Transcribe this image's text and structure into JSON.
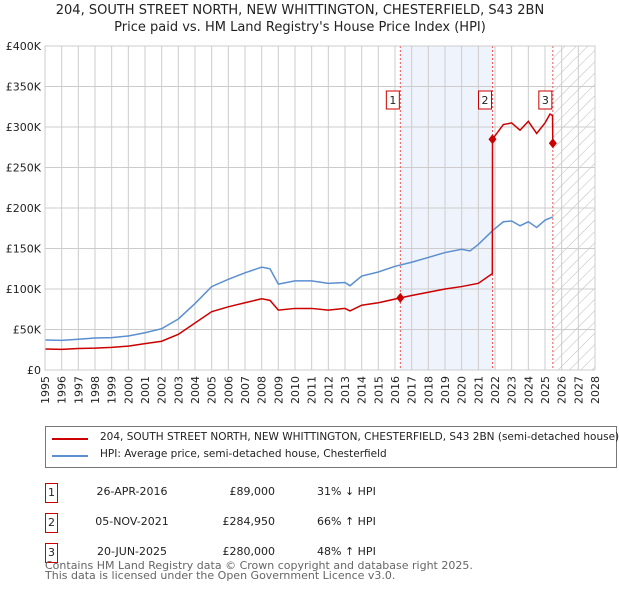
{
  "chart_data": {
    "type": "line",
    "title": "204, SOUTH STREET NORTH, NEW WHITTINGTON, CHESTERFIELD, S43 2BN",
    "subtitle": "Price paid vs. HM Land Registry's House Price Index (HPI)",
    "xlim": [
      1995,
      2028
    ],
    "ylim": [
      0,
      400000
    ],
    "y_ticks": [
      {
        "v": 0,
        "l": "£0"
      },
      {
        "v": 50000,
        "l": "£50K"
      },
      {
        "v": 100000,
        "l": "£100K"
      },
      {
        "v": 150000,
        "l": "£150K"
      },
      {
        "v": 200000,
        "l": "£200K"
      },
      {
        "v": 250000,
        "l": "£250K"
      },
      {
        "v": 300000,
        "l": "£300K"
      },
      {
        "v": 350000,
        "l": "£350K"
      },
      {
        "v": 400000,
        "l": "£400K"
      }
    ],
    "x_ticks": [
      "1995",
      "1996",
      "1997",
      "1998",
      "1999",
      "2000",
      "2001",
      "2002",
      "2003",
      "2004",
      "2005",
      "2006",
      "2007",
      "2008",
      "2009",
      "2010",
      "2011",
      "2012",
      "2013",
      "2014",
      "2015",
      "2016",
      "2017",
      "2018",
      "2019",
      "2020",
      "2021",
      "2022",
      "2023",
      "2024",
      "2025",
      "2026",
      "2027",
      "2028"
    ],
    "shaded_range": [
      2016.32,
      2021.85
    ],
    "forecast_from": 2025.47,
    "series": [
      {
        "name": "204, SOUTH STREET NORTH, NEW WHITTINGTON, CHESTERFIELD, S43 2BN (semi-detached house)",
        "color": "#cc0000",
        "points": [
          [
            1995,
            26000
          ],
          [
            1996,
            25500
          ],
          [
            1997,
            26500
          ],
          [
            1998,
            27000
          ],
          [
            1999,
            28000
          ],
          [
            2000,
            29500
          ],
          [
            2001,
            32500
          ],
          [
            2002,
            35500
          ],
          [
            2003,
            44000
          ],
          [
            2004,
            58000
          ],
          [
            2005,
            72000
          ],
          [
            2006,
            78000
          ],
          [
            2007,
            83000
          ],
          [
            2008,
            88000
          ],
          [
            2008.5,
            86000
          ],
          [
            2009,
            74000
          ],
          [
            2010,
            76000
          ],
          [
            2011,
            76000
          ],
          [
            2012,
            74000
          ],
          [
            2013,
            76000
          ],
          [
            2013.3,
            73000
          ],
          [
            2014,
            80000
          ],
          [
            2015,
            83000
          ],
          [
            2016.32,
            89000
          ],
          [
            2017,
            92000
          ],
          [
            2018,
            96000
          ],
          [
            2019,
            100000
          ],
          [
            2020,
            103000
          ],
          [
            2021,
            107000
          ],
          [
            2021.84,
            119000
          ],
          [
            2021.85,
            284950
          ],
          [
            2022.5,
            303000
          ],
          [
            2023,
            305000
          ],
          [
            2023.5,
            296000
          ],
          [
            2024,
            307000
          ],
          [
            2024.5,
            292000
          ],
          [
            2025,
            305000
          ],
          [
            2025.3,
            316000
          ],
          [
            2025.45,
            314000
          ],
          [
            2025.47,
            280000
          ]
        ]
      },
      {
        "name": "HPI: Average price, semi-detached house, Chesterfield",
        "color": "#5b8fd0",
        "points": [
          [
            1995,
            37000
          ],
          [
            1996,
            36500
          ],
          [
            1997,
            38000
          ],
          [
            1998,
            39500
          ],
          [
            1999,
            40000
          ],
          [
            2000,
            42000
          ],
          [
            2001,
            46000
          ],
          [
            2002,
            51000
          ],
          [
            2003,
            63000
          ],
          [
            2004,
            82000
          ],
          [
            2005,
            103000
          ],
          [
            2006,
            112000
          ],
          [
            2007,
            120000
          ],
          [
            2008,
            127000
          ],
          [
            2008.5,
            125000
          ],
          [
            2009,
            106000
          ],
          [
            2009.5,
            108000
          ],
          [
            2010,
            110000
          ],
          [
            2011,
            110000
          ],
          [
            2012,
            107000
          ],
          [
            2013,
            108000
          ],
          [
            2013.3,
            104000
          ],
          [
            2014,
            116000
          ],
          [
            2015,
            121000
          ],
          [
            2016,
            128000
          ],
          [
            2017,
            133000
          ],
          [
            2018,
            139000
          ],
          [
            2019,
            145000
          ],
          [
            2020,
            149000
          ],
          [
            2020.5,
            147000
          ],
          [
            2021,
            155000
          ],
          [
            2021.85,
            172000
          ],
          [
            2022.5,
            183000
          ],
          [
            2023,
            184000
          ],
          [
            2023.5,
            178000
          ],
          [
            2024,
            183000
          ],
          [
            2024.5,
            176000
          ],
          [
            2025,
            185000
          ],
          [
            2025.47,
            189000
          ]
        ]
      }
    ],
    "sales": [
      {
        "n": "1",
        "x": 2016.32,
        "y": 89000
      },
      {
        "n": "2",
        "x": 2021.85,
        "y": 284950
      },
      {
        "n": "3",
        "x": 2025.47,
        "y": 280000
      }
    ]
  },
  "title_line1": "204, SOUTH STREET NORTH, NEW WHITTINGTON, CHESTERFIELD, S43 2BN",
  "title_line2": "Price paid vs. HM Land Registry's House Price Index (HPI)",
  "legend": {
    "red": "204, SOUTH STREET NORTH, NEW WHITTINGTON, CHESTERFIELD, S43 2BN (semi-detached house)",
    "blue": "HPI: Average price, semi-detached house, Chesterfield"
  },
  "transactions": [
    {
      "n": "1",
      "date": "26-APR-2016",
      "price": "£89,000",
      "hpi": "31% ↓ HPI"
    },
    {
      "n": "2",
      "date": "05-NOV-2021",
      "price": "£284,950",
      "hpi": "66% ↑ HPI"
    },
    {
      "n": "3",
      "date": "20-JUN-2025",
      "price": "£280,000",
      "hpi": "48% ↑ HPI"
    }
  ],
  "footer": {
    "line1": "Contains HM Land Registry data © Crown copyright and database right 2025.",
    "line2": "This data is licensed under the Open Government Licence v3.0."
  }
}
